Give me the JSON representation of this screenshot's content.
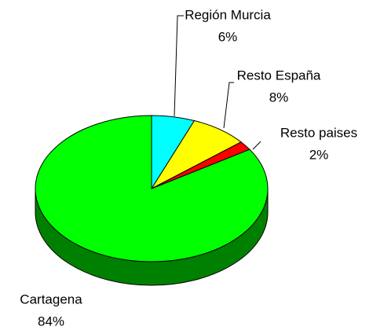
{
  "chart_data": {
    "type": "pie",
    "categories": [
      "Región Murcia",
      "Resto España",
      "Resto paises",
      "Cartagena"
    ],
    "values": [
      6,
      8,
      2,
      84
    ],
    "value_labels": [
      "6%",
      "8%",
      "2%",
      "84%"
    ],
    "colors": [
      "#00ffff",
      "#ffff00",
      "#ff0000",
      "#00ff00"
    ],
    "side_colors": [
      "#008080",
      "#808000",
      "#800000",
      "#008000"
    ]
  }
}
